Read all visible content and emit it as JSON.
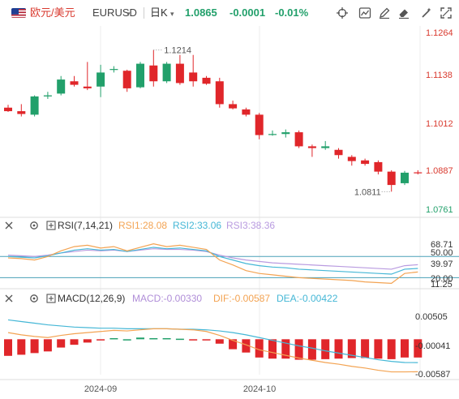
{
  "toolbar": {
    "pair_cn": "欧元/美元",
    "pair_code": "EURUSD",
    "caret": "▾",
    "period": "日K",
    "price": "1.0865",
    "change": "-0.0001",
    "change_pct": "-0.01%",
    "icons": [
      "flag-icon",
      "crosshair-icon",
      "indicator-icon",
      "draw-pen-icon",
      "eraser-icon",
      "magic-icon",
      "fullscreen-icon"
    ]
  },
  "colors": {
    "up": "#22a06b",
    "down": "#e0262a",
    "rsi1": "#f3a352",
    "rsi2": "#45b7d6",
    "rsi3": "#b99be0",
    "macd": "#b08ed8",
    "dif": "#f3a352",
    "dea": "#45b7d6",
    "price_axis": "#d93a2f"
  },
  "chart_data": [
    {
      "type": "candlestick",
      "y_ticks": [
        "1.1264",
        "1.1138",
        "1.1012",
        "1.0887",
        "1.0761"
      ],
      "ylim": [
        1.0761,
        1.1264
      ],
      "annotations": [
        {
          "text": "1.1214",
          "value": 1.1214,
          "candle_index": 11
        },
        {
          "text": "1.0811",
          "value": 1.0811,
          "candle_index": 29
        }
      ],
      "candles": [
        {
          "o": 1.105,
          "h": 1.1058,
          "l": 1.1038,
          "c": 1.104
        },
        {
          "o": 1.104,
          "h": 1.106,
          "l": 1.1025,
          "c": 1.1032
        },
        {
          "o": 1.103,
          "h": 1.1085,
          "l": 1.1025,
          "c": 1.1082
        },
        {
          "o": 1.1082,
          "h": 1.1095,
          "l": 1.1075,
          "c": 1.1085
        },
        {
          "o": 1.109,
          "h": 1.114,
          "l": 1.1085,
          "c": 1.113
        },
        {
          "o": 1.1125,
          "h": 1.114,
          "l": 1.111,
          "c": 1.1115
        },
        {
          "o": 1.111,
          "h": 1.118,
          "l": 1.11,
          "c": 1.1105
        },
        {
          "o": 1.111,
          "h": 1.1172,
          "l": 1.108,
          "c": 1.115
        },
        {
          "o": 1.116,
          "h": 1.1168,
          "l": 1.115,
          "c": 1.116
        },
        {
          "o": 1.1155,
          "h": 1.1158,
          "l": 1.1095,
          "c": 1.1105
        },
        {
          "o": 1.1108,
          "h": 1.118,
          "l": 1.1105,
          "c": 1.1175
        },
        {
          "o": 1.117,
          "h": 1.1214,
          "l": 1.111,
          "c": 1.1125
        },
        {
          "o": 1.1125,
          "h": 1.118,
          "l": 1.112,
          "c": 1.1175
        },
        {
          "o": 1.1175,
          "h": 1.12,
          "l": 1.1115,
          "c": 1.112
        },
        {
          "o": 1.115,
          "h": 1.12,
          "l": 1.111,
          "c": 1.1125
        },
        {
          "o": 1.1135,
          "h": 1.114,
          "l": 1.1115,
          "c": 1.1118
        },
        {
          "o": 1.1125,
          "h": 1.1135,
          "l": 1.105,
          "c": 1.106
        },
        {
          "o": 1.106,
          "h": 1.107,
          "l": 1.1045,
          "c": 1.1048
        },
        {
          "o": 1.1045,
          "h": 1.105,
          "l": 1.1025,
          "c": 1.103
        },
        {
          "o": 1.103,
          "h": 1.1035,
          "l": 1.096,
          "c": 1.0972
        },
        {
          "o": 1.0975,
          "h": 1.0985,
          "l": 1.097,
          "c": 1.0975
        },
        {
          "o": 1.0975,
          "h": 1.0988,
          "l": 1.0965,
          "c": 1.098
        },
        {
          "o": 1.098,
          "h": 1.0985,
          "l": 1.0935,
          "c": 1.094
        },
        {
          "o": 1.094,
          "h": 1.0945,
          "l": 1.091,
          "c": 1.0935
        },
        {
          "o": 1.0935,
          "h": 1.0955,
          "l": 1.093,
          "c": 1.094
        },
        {
          "o": 1.093,
          "h": 1.0935,
          "l": 1.0905,
          "c": 1.0915
        },
        {
          "o": 1.091,
          "h": 1.0915,
          "l": 1.0885,
          "c": 1.0898
        },
        {
          "o": 1.09,
          "h": 1.0905,
          "l": 1.0885,
          "c": 1.089
        },
        {
          "o": 1.0895,
          "h": 1.09,
          "l": 1.086,
          "c": 1.0868
        },
        {
          "o": 1.0868,
          "h": 1.0872,
          "l": 1.0811,
          "c": 1.083
        },
        {
          "o": 1.0835,
          "h": 1.087,
          "l": 1.083,
          "c": 1.0865
        },
        {
          "o": 1.0866,
          "h": 1.0872,
          "l": 1.086,
          "c": 1.0865
        }
      ]
    },
    {
      "type": "line",
      "indicator": "RSI",
      "params": "RSI(7,14,21)",
      "legend": [
        {
          "name": "RSI1:28.08",
          "color_key": "rsi1"
        },
        {
          "name": "RSI2:33.06",
          "color_key": "rsi2"
        },
        {
          "name": "RSI3:38.36",
          "color_key": "rsi3"
        }
      ],
      "y_ticks": [
        "68.71",
        "50.00",
        "39.97",
        "20.00",
        "11.25"
      ],
      "ylim": [
        11.25,
        68.71
      ],
      "ref_lines": [
        50,
        20
      ],
      "series": [
        {
          "name": "RSI1:28.08",
          "values": [
            48,
            47,
            45,
            50,
            58,
            64,
            66,
            62,
            64,
            58,
            63,
            68,
            64,
            66,
            63,
            60,
            45,
            38,
            30,
            26,
            24,
            22,
            20,
            19,
            18,
            17,
            16,
            14,
            13,
            12,
            26,
            28.08
          ]
        },
        {
          "name": "RSI2:33.06",
          "values": [
            50,
            49,
            48,
            51,
            55,
            59,
            61,
            59,
            60,
            57,
            60,
            63,
            61,
            62,
            60,
            58,
            50,
            45,
            40,
            37,
            35,
            34,
            32,
            31,
            30,
            29,
            28,
            27,
            26,
            25,
            32,
            33.06
          ]
        },
        {
          "name": "RSI3:38.36",
          "values": [
            52,
            51,
            50,
            52,
            55,
            57,
            59,
            58,
            59,
            57,
            59,
            61,
            60,
            60,
            59,
            57,
            52,
            48,
            45,
            43,
            41,
            40,
            39,
            38,
            37,
            36,
            35,
            34,
            33,
            32,
            37,
            38.36
          ]
        }
      ]
    },
    {
      "type": "bar",
      "indicator": "MACD",
      "params": "MACD(12,26,9)",
      "legend": [
        {
          "name": "MACD:-0.00330",
          "color_key": "macd"
        },
        {
          "name": "DIF:-0.00587",
          "color_key": "dif"
        },
        {
          "name": "DEA:-0.00422",
          "color_key": "dea"
        }
      ],
      "y_ticks": [
        "0.00505",
        "-0.00041",
        "-0.00587"
      ],
      "ylim": [
        -0.0064,
        0.0062
      ],
      "macd_hist": [
        -0.003,
        -0.0028,
        -0.0025,
        -0.0022,
        -0.0015,
        -0.001,
        -0.0006,
        -0.0002,
        0.0002,
        0.0,
        0.0003,
        0.0002,
        0.0002,
        0.0001,
        -0.0001,
        -0.0002,
        -0.0008,
        -0.0018,
        -0.0024,
        -0.0033,
        -0.0035,
        -0.0035,
        -0.0037,
        -0.0037,
        -0.0036,
        -0.0035,
        -0.0034,
        -0.0034,
        -0.0035,
        -0.0036,
        -0.0033,
        -0.0033
      ],
      "dif": [
        0.0012,
        0.0008,
        0.0005,
        0.0003,
        0.0007,
        0.001,
        0.0012,
        0.0014,
        0.0016,
        0.0015,
        0.0017,
        0.0019,
        0.0019,
        0.0018,
        0.0017,
        0.0014,
        0.0007,
        -0.0002,
        -0.001,
        -0.0019,
        -0.0024,
        -0.0029,
        -0.0034,
        -0.0038,
        -0.0042,
        -0.0045,
        -0.0049,
        -0.0052,
        -0.0056,
        -0.0059,
        -0.0059,
        -0.00587
      ],
      "dea": [
        0.0035,
        0.0032,
        0.0029,
        0.0026,
        0.0024,
        0.0022,
        0.0021,
        0.002,
        0.002,
        0.0019,
        0.0019,
        0.0019,
        0.0019,
        0.0018,
        0.0018,
        0.0017,
        0.0015,
        0.0012,
        0.0008,
        0.0003,
        -0.0002,
        -0.0007,
        -0.0012,
        -0.0016,
        -0.0021,
        -0.0025,
        -0.0029,
        -0.0033,
        -0.0037,
        -0.004,
        -0.0042,
        -0.00422
      ]
    }
  ],
  "x_axis": {
    "labels": [
      {
        "text": "2024-09",
        "candle_index": 7
      },
      {
        "text": "2024-10",
        "candle_index": 19
      }
    ]
  }
}
